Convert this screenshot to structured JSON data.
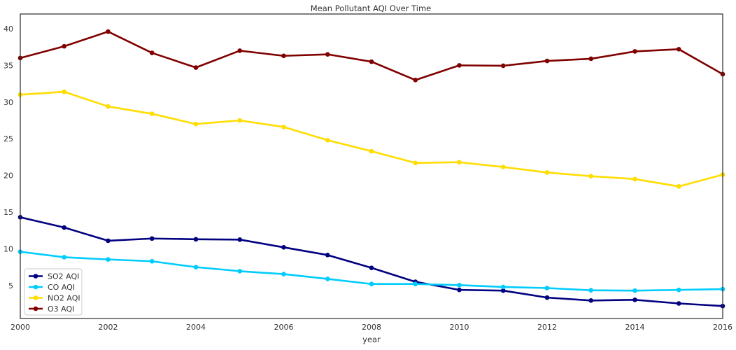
{
  "chart_data": {
    "type": "line",
    "title": "Mean Pollutant AQI Over Time",
    "xlabel": "year",
    "ylabel": "",
    "xlim": [
      2000,
      2016
    ],
    "ylim": [
      0.5,
      42
    ],
    "x_ticks": [
      2000,
      2002,
      2004,
      2006,
      2008,
      2010,
      2012,
      2014,
      2016
    ],
    "y_ticks": [
      5,
      10,
      15,
      20,
      25,
      30,
      35,
      40
    ],
    "grid": false,
    "legend_position": "bottom-left",
    "x": [
      2000,
      2001,
      2002,
      2003,
      2004,
      2005,
      2006,
      2007,
      2008,
      2009,
      2010,
      2011,
      2012,
      2013,
      2014,
      2015,
      2016
    ],
    "series": [
      {
        "name": "SO2 AQI",
        "color": "#000080",
        "values": [
          14.3,
          12.9,
          11.1,
          11.4,
          11.3,
          11.25,
          10.2,
          9.15,
          7.4,
          5.5,
          4.4,
          4.3,
          3.35,
          2.95,
          3.05,
          2.55,
          2.2
        ]
      },
      {
        "name": "CO AQI",
        "color": "#00ccff",
        "values": [
          9.6,
          8.85,
          8.55,
          8.3,
          7.5,
          6.95,
          6.55,
          5.9,
          5.2,
          5.2,
          5.05,
          4.8,
          4.65,
          4.35,
          4.3,
          4.4,
          4.5
        ]
      },
      {
        "name": "NO2 AQI",
        "color": "#ffdd00",
        "values": [
          31.0,
          31.4,
          29.4,
          28.4,
          27.0,
          27.5,
          26.6,
          24.8,
          23.3,
          21.7,
          21.8,
          21.15,
          20.4,
          19.9,
          19.5,
          18.5,
          20.1
        ]
      },
      {
        "name": "O3 AQI",
        "color": "#800000",
        "values": [
          36.0,
          37.6,
          39.6,
          36.7,
          34.7,
          37.0,
          36.3,
          36.5,
          35.5,
          33.0,
          35.0,
          34.95,
          35.6,
          35.9,
          36.9,
          37.2,
          33.8
        ]
      }
    ]
  }
}
